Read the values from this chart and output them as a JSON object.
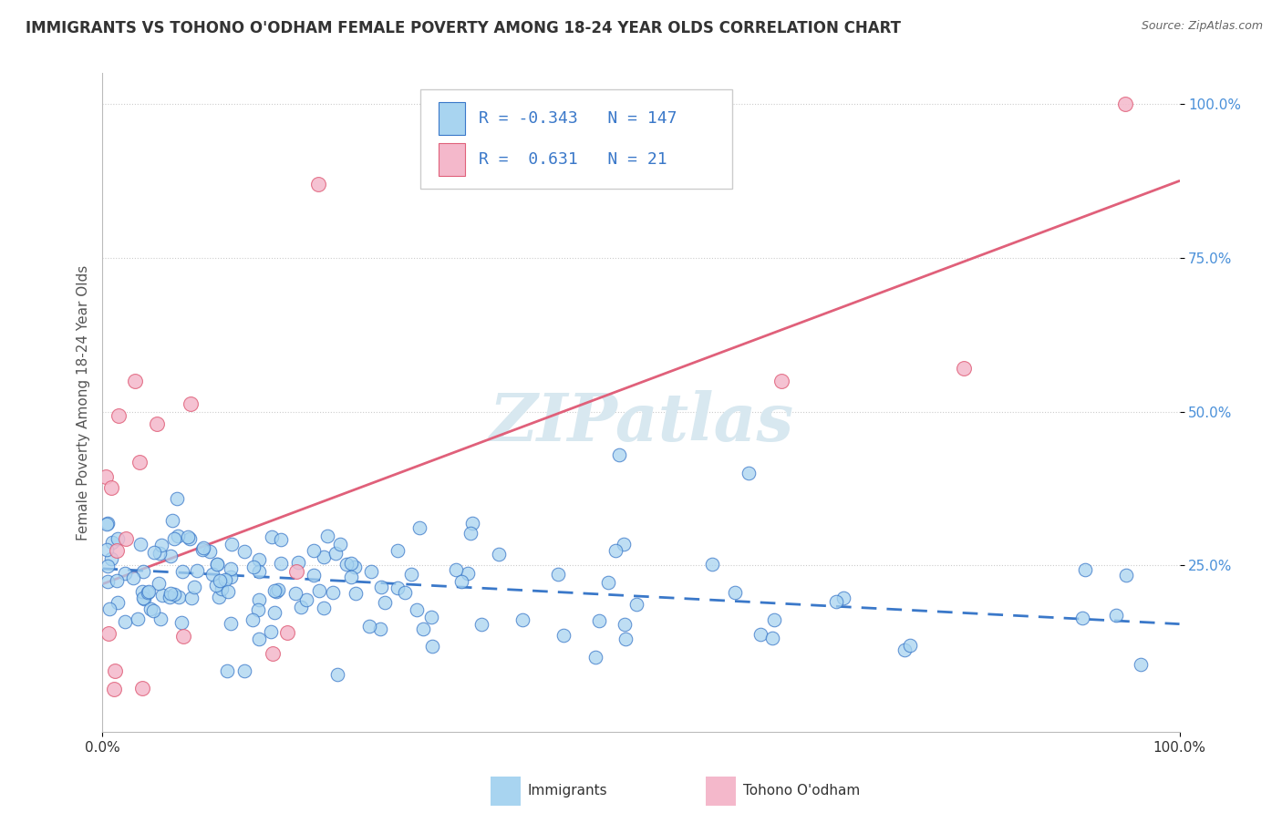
{
  "title": "IMMIGRANTS VS TOHONO O'ODHAM FEMALE POVERTY AMONG 18-24 YEAR OLDS CORRELATION CHART",
  "source": "Source: ZipAtlas.com",
  "ylabel": "Female Poverty Among 18-24 Year Olds",
  "xlim": [
    0.0,
    1.0
  ],
  "ylim": [
    -0.02,
    1.05
  ],
  "x_tick_positions": [
    0.0,
    1.0
  ],
  "x_tick_labels": [
    "0.0%",
    "100.0%"
  ],
  "y_tick_positions": [
    0.25,
    0.5,
    0.75,
    1.0
  ],
  "y_tick_labels": [
    "25.0%",
    "50.0%",
    "75.0%",
    "100.0%"
  ],
  "immigrants_R": -0.343,
  "immigrants_N": 147,
  "tohono_R": 0.631,
  "tohono_N": 21,
  "immigrants_color": "#a8d4f0",
  "tohono_color": "#f4b8cb",
  "immigrants_line_color": "#3a78c9",
  "tohono_line_color": "#e0607a",
  "watermark": "ZIPatlas",
  "background_color": "#ffffff",
  "grid_color": "#cccccc",
  "title_color": "#333333",
  "source_color": "#666666",
  "tick_color_y": "#4a90d9",
  "tick_color_x": "#333333",
  "ylabel_color": "#555555",
  "imm_line_start_y": 0.245,
  "imm_line_end_y": 0.155,
  "toh_line_start_y": 0.22,
  "toh_line_end_y": 0.875
}
